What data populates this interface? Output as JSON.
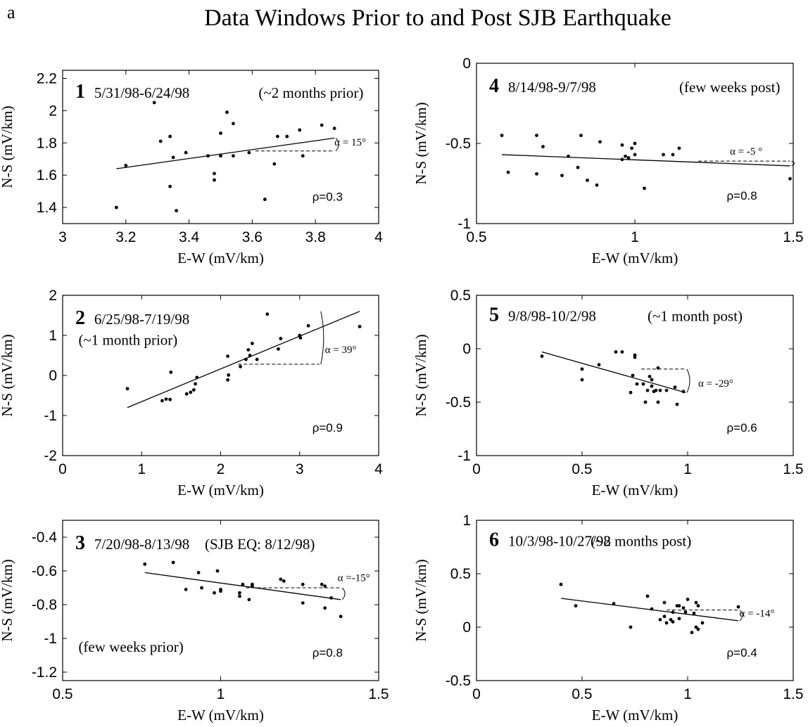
{
  "figure_label": "a",
  "title": "Data Windows Prior to and Post SJB Earthquake",
  "chart_data": [
    {
      "type": "scatter",
      "panel_number": "1",
      "date_range": "5/31/98-6/24/98",
      "note": "(~2 months prior)",
      "xlabel": "E-W (mV/km)",
      "ylabel": "N-S (mV/km)",
      "xlim": [
        3,
        4
      ],
      "ylim": [
        1.3,
        2.25
      ],
      "xticks": [
        "3",
        "3.2",
        "3.4",
        "3.6",
        "3.8",
        "4"
      ],
      "yticks": [
        "1.4",
        "1.6",
        "1.8",
        "2",
        "2.2"
      ],
      "alpha_label": "α = 15°",
      "rho_label": "ρ=0.3",
      "fit": [
        [
          3.17,
          1.64
        ],
        [
          3.86,
          1.83
        ]
      ],
      "points": [
        [
          3.17,
          1.4
        ],
        [
          3.2,
          1.66
        ],
        [
          3.29,
          2.05
        ],
        [
          3.31,
          1.81
        ],
        [
          3.34,
          1.84
        ],
        [
          3.34,
          1.53
        ],
        [
          3.35,
          1.71
        ],
        [
          3.36,
          1.38
        ],
        [
          3.39,
          1.74
        ],
        [
          3.46,
          1.72
        ],
        [
          3.48,
          1.61
        ],
        [
          3.48,
          1.57
        ],
        [
          3.5,
          1.72
        ],
        [
          3.5,
          1.86
        ],
        [
          3.52,
          1.99
        ],
        [
          3.54,
          1.92
        ],
        [
          3.54,
          1.72
        ],
        [
          3.59,
          1.74
        ],
        [
          3.64,
          1.45
        ],
        [
          3.67,
          1.67
        ],
        [
          3.68,
          1.84
        ],
        [
          3.71,
          1.84
        ],
        [
          3.75,
          1.88
        ],
        [
          3.76,
          1.72
        ],
        [
          3.82,
          1.91
        ],
        [
          3.86,
          1.89
        ]
      ],
      "ref_y": 1.75,
      "ref_x": [
        3.61,
        3.86
      ]
    },
    {
      "type": "scatter",
      "panel_number": "4",
      "date_range": "8/14/98-9/7/98",
      "note": "(few weeks post)",
      "xlabel": "E-W (mV/km)",
      "ylabel": "N-S (mV/km)",
      "xlim": [
        0.5,
        1.5
      ],
      "ylim": [
        -1,
        0
      ],
      "xticks": [
        "0.5",
        "1",
        "1.5"
      ],
      "yticks": [
        "-1",
        "-0.5",
        "0"
      ],
      "alpha_label": "α = -5 °",
      "rho_label": "ρ=0.8",
      "fit": [
        [
          0.58,
          -0.57
        ],
        [
          1.49,
          -0.64
        ]
      ],
      "points": [
        [
          0.58,
          -0.45
        ],
        [
          0.6,
          -0.68
        ],
        [
          0.69,
          -0.45
        ],
        [
          0.69,
          -0.69
        ],
        [
          0.71,
          -0.52
        ],
        [
          0.77,
          -0.7
        ],
        [
          0.79,
          -0.58
        ],
        [
          0.82,
          -0.65
        ],
        [
          0.83,
          -0.45
        ],
        [
          0.85,
          -0.73
        ],
        [
          0.88,
          -0.76
        ],
        [
          0.89,
          -0.49
        ],
        [
          0.96,
          -0.51
        ],
        [
          0.96,
          -0.6
        ],
        [
          0.97,
          -0.58
        ],
        [
          0.98,
          -0.59
        ],
        [
          0.99,
          -0.53
        ],
        [
          1.0,
          -0.5
        ],
        [
          1.0,
          -0.57
        ],
        [
          1.03,
          -0.78
        ],
        [
          1.09,
          -0.57
        ],
        [
          1.12,
          -0.57
        ],
        [
          1.14,
          -0.53
        ],
        [
          1.49,
          -0.72
        ]
      ],
      "ref_y": -0.61,
      "ref_x": [
        1.2,
        1.49
      ]
    },
    {
      "type": "scatter",
      "panel_number": "2",
      "date_range": "6/25/98-7/19/98",
      "note": "(~1 month prior)",
      "xlabel": "E-W (mV/km)",
      "ylabel": "N-S (mV/km)",
      "xlim": [
        0,
        4
      ],
      "ylim": [
        -2,
        2
      ],
      "xticks": [
        "0",
        "1",
        "2",
        "3",
        "4"
      ],
      "yticks": [
        "-2",
        "-1",
        "0",
        "1",
        "2"
      ],
      "alpha_label": "α = 39°",
      "rho_label": "ρ=0.9",
      "fit": [
        [
          0.82,
          -0.8
        ],
        [
          3.76,
          1.6
        ]
      ],
      "points": [
        [
          0.82,
          -0.33
        ],
        [
          1.26,
          -0.63
        ],
        [
          1.31,
          -0.59
        ],
        [
          1.36,
          -0.6
        ],
        [
          1.37,
          0.08
        ],
        [
          1.57,
          -0.46
        ],
        [
          1.62,
          -0.42
        ],
        [
          1.66,
          -0.36
        ],
        [
          1.68,
          -0.21
        ],
        [
          1.7,
          -0.05
        ],
        [
          2.09,
          0.48
        ],
        [
          2.09,
          -0.11
        ],
        [
          2.1,
          0.01
        ],
        [
          2.25,
          0.22
        ],
        [
          2.32,
          0.4
        ],
        [
          2.35,
          0.64
        ],
        [
          2.37,
          0.5
        ],
        [
          2.4,
          0.8
        ],
        [
          2.46,
          0.4
        ],
        [
          2.59,
          1.53
        ],
        [
          2.73,
          0.66
        ],
        [
          2.76,
          0.92
        ],
        [
          3.0,
          1.0
        ],
        [
          3.01,
          0.94
        ],
        [
          3.11,
          1.24
        ],
        [
          3.76,
          1.22
        ]
      ],
      "ref_y": 0.28,
      "ref_x": [
        2.22,
        3.25
      ]
    },
    {
      "type": "scatter",
      "panel_number": "5",
      "date_range": "9/8/98-10/2/98",
      "note": "(~1 month post)",
      "xlabel": "E-W (mV/km)",
      "ylabel": "N-S (mV/km)",
      "xlim": [
        0,
        1.5
      ],
      "ylim": [
        -1,
        0.5
      ],
      "xticks": [
        "0",
        "0.5",
        "1",
        "1.5"
      ],
      "yticks": [
        "-1",
        "-0.5",
        "0",
        "0.5"
      ],
      "alpha_label": "α = -29°",
      "rho_label": "ρ=0.6",
      "fit": [
        [
          0.31,
          -0.03
        ],
        [
          0.99,
          -0.41
        ]
      ],
      "points": [
        [
          0.31,
          -0.07
        ],
        [
          0.5,
          -0.19
        ],
        [
          0.5,
          -0.29
        ],
        [
          0.58,
          -0.15
        ],
        [
          0.66,
          -0.03
        ],
        [
          0.69,
          -0.03
        ],
        [
          0.73,
          -0.41
        ],
        [
          0.74,
          -0.25
        ],
        [
          0.75,
          -0.08
        ],
        [
          0.75,
          -0.06
        ],
        [
          0.76,
          -0.33
        ],
        [
          0.79,
          -0.33
        ],
        [
          0.8,
          -0.5
        ],
        [
          0.81,
          -0.39
        ],
        [
          0.82,
          -0.26
        ],
        [
          0.83,
          -0.29
        ],
        [
          0.83,
          -0.35
        ],
        [
          0.84,
          -0.4
        ],
        [
          0.85,
          -0.39
        ],
        [
          0.86,
          -0.5
        ],
        [
          0.86,
          -0.18
        ],
        [
          0.87,
          -0.39
        ],
        [
          0.9,
          -0.39
        ],
        [
          0.94,
          -0.36
        ],
        [
          0.95,
          -0.52
        ],
        [
          0.98,
          -0.4
        ]
      ],
      "ref_y": -0.19,
      "ref_x": [
        0.78,
        0.99
      ]
    },
    {
      "type": "scatter",
      "panel_number": "3",
      "date_range": "7/20/98-8/13/98",
      "note": "(SJB EQ: 8/12/98)",
      "note2": "(few weeks prior)",
      "xlabel": "E-W (mV/km)",
      "ylabel": "N-S (mV/km)",
      "xlim": [
        0.5,
        1.5
      ],
      "ylim": [
        -1.25,
        -0.3
      ],
      "xticks": [
        "0.5",
        "1",
        "1.5"
      ],
      "yticks": [
        "-1.2",
        "-1",
        "-0.8",
        "-0.6",
        "-0.4"
      ],
      "alpha_label": "α =-15°",
      "rho_label": "ρ=0.8",
      "fit": [
        [
          0.76,
          -0.61
        ],
        [
          1.38,
          -0.77
        ]
      ],
      "points": [
        [
          0.76,
          -0.56
        ],
        [
          0.85,
          -0.55
        ],
        [
          0.89,
          -0.71
        ],
        [
          0.93,
          -0.61
        ],
        [
          0.94,
          -0.7
        ],
        [
          0.98,
          -0.73
        ],
        [
          0.99,
          -0.6
        ],
        [
          1.0,
          -0.72
        ],
        [
          1.0,
          -0.71
        ],
        [
          1.06,
          -0.73
        ],
        [
          1.06,
          -0.75
        ],
        [
          1.07,
          -0.68
        ],
        [
          1.09,
          -0.77
        ],
        [
          1.1,
          -0.69
        ],
        [
          1.1,
          -0.68
        ],
        [
          1.19,
          -0.65
        ],
        [
          1.2,
          -0.66
        ],
        [
          1.26,
          -0.68
        ],
        [
          1.26,
          -0.79
        ],
        [
          1.32,
          -0.68
        ],
        [
          1.33,
          -0.69
        ],
        [
          1.33,
          -0.82
        ],
        [
          1.35,
          -0.76
        ],
        [
          1.38,
          -0.87
        ]
      ],
      "ref_y": -0.7,
      "ref_x": [
        1.08,
        1.38
      ]
    },
    {
      "type": "scatter",
      "panel_number": "6",
      "date_range": "10/3/98-10/27/98",
      "note": "(~2 months post)",
      "xlabel": "E-W (mV/km)",
      "ylabel": "N-S (mV/km)",
      "xlim": [
        0,
        1.5
      ],
      "ylim": [
        -0.5,
        1
      ],
      "xticks": [
        "0",
        "0.5",
        "1",
        "1.5"
      ],
      "yticks": [
        "-0.5",
        "0",
        "0.5",
        "1"
      ],
      "alpha_label": "α = -14°",
      "rho_label": "ρ=0.4",
      "fit": [
        [
          0.4,
          0.27
        ],
        [
          1.24,
          0.06
        ]
      ],
      "points": [
        [
          0.4,
          0.4
        ],
        [
          0.47,
          0.2
        ],
        [
          0.65,
          0.22
        ],
        [
          0.73,
          0.0
        ],
        [
          0.81,
          0.29
        ],
        [
          0.83,
          0.17
        ],
        [
          0.87,
          0.07
        ],
        [
          0.89,
          0.23
        ],
        [
          0.89,
          0.1
        ],
        [
          0.9,
          0.04
        ],
        [
          0.92,
          0.07
        ],
        [
          0.93,
          0.05
        ],
        [
          0.93,
          0.14
        ],
        [
          0.95,
          0.2
        ],
        [
          0.96,
          0.2
        ],
        [
          0.96,
          0.08
        ],
        [
          0.98,
          0.18
        ],
        [
          0.99,
          0.14
        ],
        [
          1.0,
          0.26
        ],
        [
          1.02,
          -0.05
        ],
        [
          1.03,
          0.13
        ],
        [
          1.04,
          0.0
        ],
        [
          1.04,
          0.23
        ],
        [
          1.05,
          -0.02
        ],
        [
          1.05,
          0.2
        ],
        [
          1.07,
          0.04
        ],
        [
          1.24,
          0.19
        ]
      ],
      "ref_y": 0.16,
      "ref_x": [
        0.9,
        1.24
      ]
    }
  ]
}
